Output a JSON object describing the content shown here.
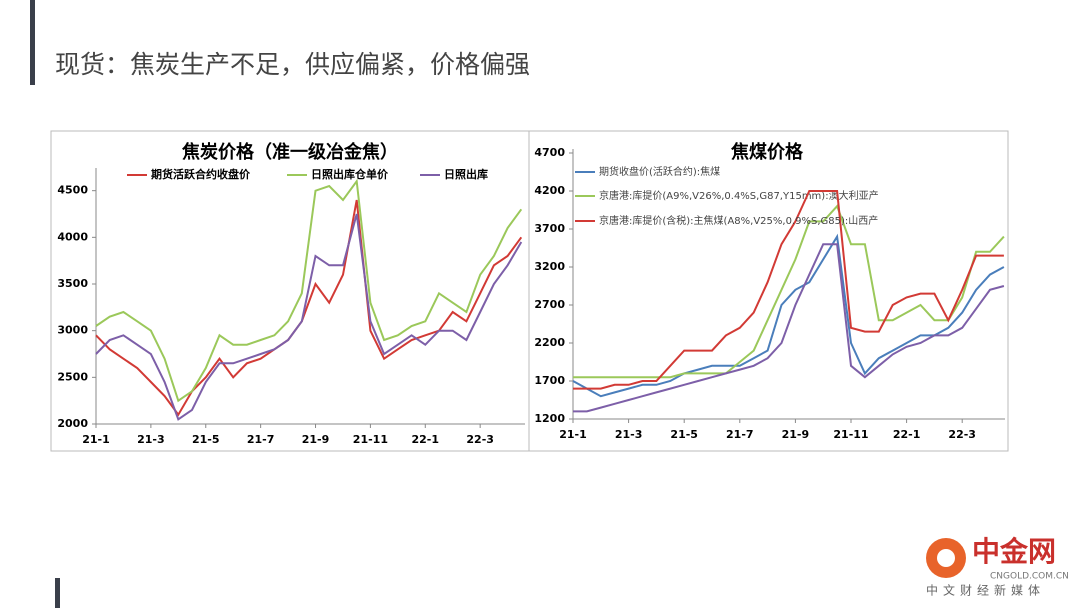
{
  "header": {
    "title": "现货：焦炭生产不足，供应偏紧，价格偏强"
  },
  "logo": {
    "name": "中金网",
    "url": "CNGOLD.COM.CN",
    "slogan": "中文财经新媒体"
  },
  "chart_data": [
    {
      "type": "line",
      "title": "焦炭价格（准一级冶金焦）",
      "categories": [
        "21-1",
        null,
        null,
        null,
        "21-3",
        null,
        null,
        null,
        "21-5",
        null,
        null,
        null,
        "21-7",
        null,
        null,
        null,
        "21-9",
        null,
        null,
        null,
        "21-11",
        null,
        null,
        null,
        "22-1",
        null,
        null,
        null,
        "22-3",
        null,
        null,
        null
      ],
      "ylim": [
        2000,
        4700
      ],
      "yticks": [
        2000,
        2500,
        3000,
        3500,
        4000,
        4500
      ],
      "series": [
        {
          "name": "期货活跃合约收盘价",
          "color": "#d23a35",
          "values": [
            2950,
            2800,
            2700,
            2600,
            2450,
            2300,
            2100,
            2350,
            2500,
            2700,
            2500,
            2650,
            2700,
            2800,
            2900,
            3100,
            3500,
            3300,
            3600,
            4400,
            3000,
            2700,
            2800,
            2900,
            2950,
            3000,
            3200,
            3100,
            3400,
            3700,
            3800,
            4000
          ]
        },
        {
          "name": "日照出库仓单价",
          "color": "#9bc85a",
          "values": [
            3050,
            3150,
            3200,
            3100,
            3000,
            2700,
            2250,
            2350,
            2600,
            2950,
            2850,
            2850,
            2900,
            2950,
            3100,
            3400,
            4500,
            4550,
            4400,
            4600,
            3300,
            2900,
            2950,
            3050,
            3100,
            3400,
            3300,
            3200,
            3600,
            3800,
            4100,
            4300
          ]
        },
        {
          "name": "日照出库",
          "color": "#7d5fa8",
          "values": [
            2750,
            2900,
            2950,
            2850,
            2750,
            2450,
            2050,
            2150,
            2450,
            2650,
            2650,
            2700,
            2750,
            2800,
            2900,
            3100,
            3800,
            3700,
            3700,
            4250,
            3100,
            2750,
            2850,
            2950,
            2850,
            3000,
            3000,
            2900,
            3200,
            3500,
            3700,
            3950
          ]
        }
      ]
    },
    {
      "type": "line",
      "title": "焦煤价格",
      "categories": [
        "21-1",
        null,
        null,
        null,
        "21-3",
        null,
        null,
        null,
        "21-5",
        null,
        null,
        null,
        "21-7",
        null,
        null,
        null,
        "21-9",
        null,
        null,
        null,
        "21-11",
        null,
        null,
        null,
        "22-1",
        null,
        null,
        null,
        "22-3",
        null,
        null,
        null
      ],
      "ylim": [
        1200,
        4700
      ],
      "yticks": [
        1200,
        1700,
        2200,
        2700,
        3200,
        3700,
        4200,
        4700
      ],
      "series": [
        {
          "name": "期货收盘价(活跃合约):焦煤",
          "color": "#4a7ebb",
          "values": [
            1700,
            1600,
            1500,
            1550,
            1600,
            1650,
            1650,
            1700,
            1800,
            1850,
            1900,
            1900,
            1900,
            2000,
            2100,
            2700,
            2900,
            3000,
            3300,
            3600,
            2200,
            1800,
            2000,
            2100,
            2200,
            2300,
            2300,
            2400,
            2600,
            2900,
            3100,
            3200
          ]
        },
        {
          "name": "京唐港:库提价(A9%,V26%,0.4%S,G87,Y15mm):澳大利亚产",
          "color": "#9bc85a",
          "values": [
            1750,
            1750,
            1750,
            1750,
            1750,
            1750,
            1750,
            1750,
            1800,
            1800,
            1800,
            1800,
            1950,
            2100,
            2500,
            2900,
            3300,
            3800,
            3800,
            4000,
            3500,
            3500,
            2500,
            2500,
            2600,
            2700,
            2500,
            2500,
            2800,
            3400,
            3400,
            3600
          ]
        },
        {
          "name": "京唐港:库提价(含税):主焦煤(A8%,V25%,0.9%S,G85):山西产",
          "color": "#d23a35",
          "values": [
            1600,
            1600,
            1600,
            1650,
            1650,
            1700,
            1700,
            1900,
            2100,
            2100,
            2100,
            2300,
            2400,
            2600,
            3000,
            3500,
            3800,
            4200,
            4200,
            4200,
            2400,
            2350,
            2350,
            2700,
            2800,
            2850,
            2850,
            2500,
            2900,
            3350,
            3350,
            3350
          ]
        },
        {
          "color": "#7d5fa8",
          "values": [
            1300,
            1300,
            1350,
            1400,
            1450,
            1500,
            1550,
            1600,
            1650,
            1700,
            1750,
            1800,
            1850,
            1900,
            2000,
            2200,
            2700,
            3100,
            3500,
            3500,
            1900,
            1750,
            1900,
            2050,
            2150,
            2200,
            2300,
            2300,
            2400,
            2650,
            2900,
            2950
          ]
        }
      ]
    }
  ]
}
